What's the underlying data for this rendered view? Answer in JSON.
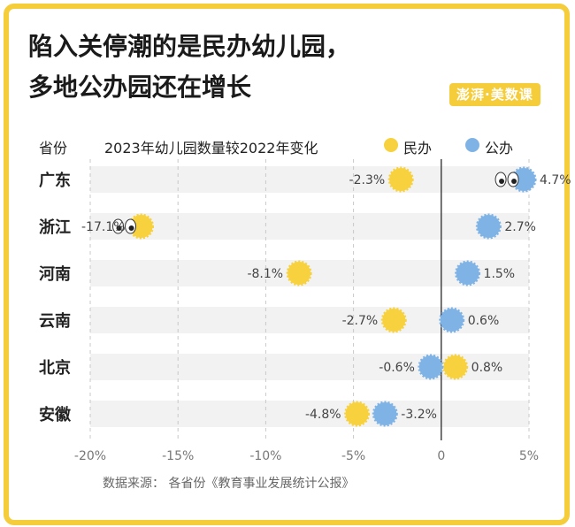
{
  "title_line1": "陷入关停潮的是民办幼儿园，",
  "title_line2": "多地公办园还在增长",
  "brand": "澎湃·美数课",
  "col_province": "省份",
  "col_metric": "2023年幼儿园数量较2022年变化",
  "source": "数据来源：  各省份《教育事业发展统计公报》",
  "colors": {
    "private": "#F7D23E",
    "public": "#7FB3E5",
    "frame": "#F5CC3A",
    "band": "#F2F2F2"
  },
  "chart_data": {
    "type": "scatter",
    "categories": [
      "广东",
      "浙江",
      "河南",
      "云南",
      "北京",
      "安徽"
    ],
    "series": [
      {
        "name": "民办",
        "values": [
          -2.3,
          -17.1,
          -8.1,
          -2.7,
          0.8,
          -4.8
        ]
      },
      {
        "name": "公办",
        "values": [
          4.7,
          2.7,
          1.5,
          0.6,
          -0.6,
          -3.2
        ]
      }
    ],
    "labels_private": [
      "-2.3%",
      "-17.1%",
      "-8.1%",
      "-2.7%",
      "0.8%",
      "-4.8%"
    ],
    "labels_public": [
      "4.7%",
      "2.7%",
      "1.5%",
      "0.6%",
      "-0.6%",
      "-3.2%"
    ],
    "xlim": [
      -20,
      5
    ],
    "xticks": [
      -20,
      -15,
      -10,
      -5,
      0,
      5
    ],
    "xtick_labels": [
      "-20%",
      "-15%",
      "-10%",
      "-5%",
      "0",
      "5%"
    ],
    "eyes_on": [
      [
        "浙江",
        "民办"
      ],
      [
        "广东",
        "公办"
      ]
    ]
  }
}
